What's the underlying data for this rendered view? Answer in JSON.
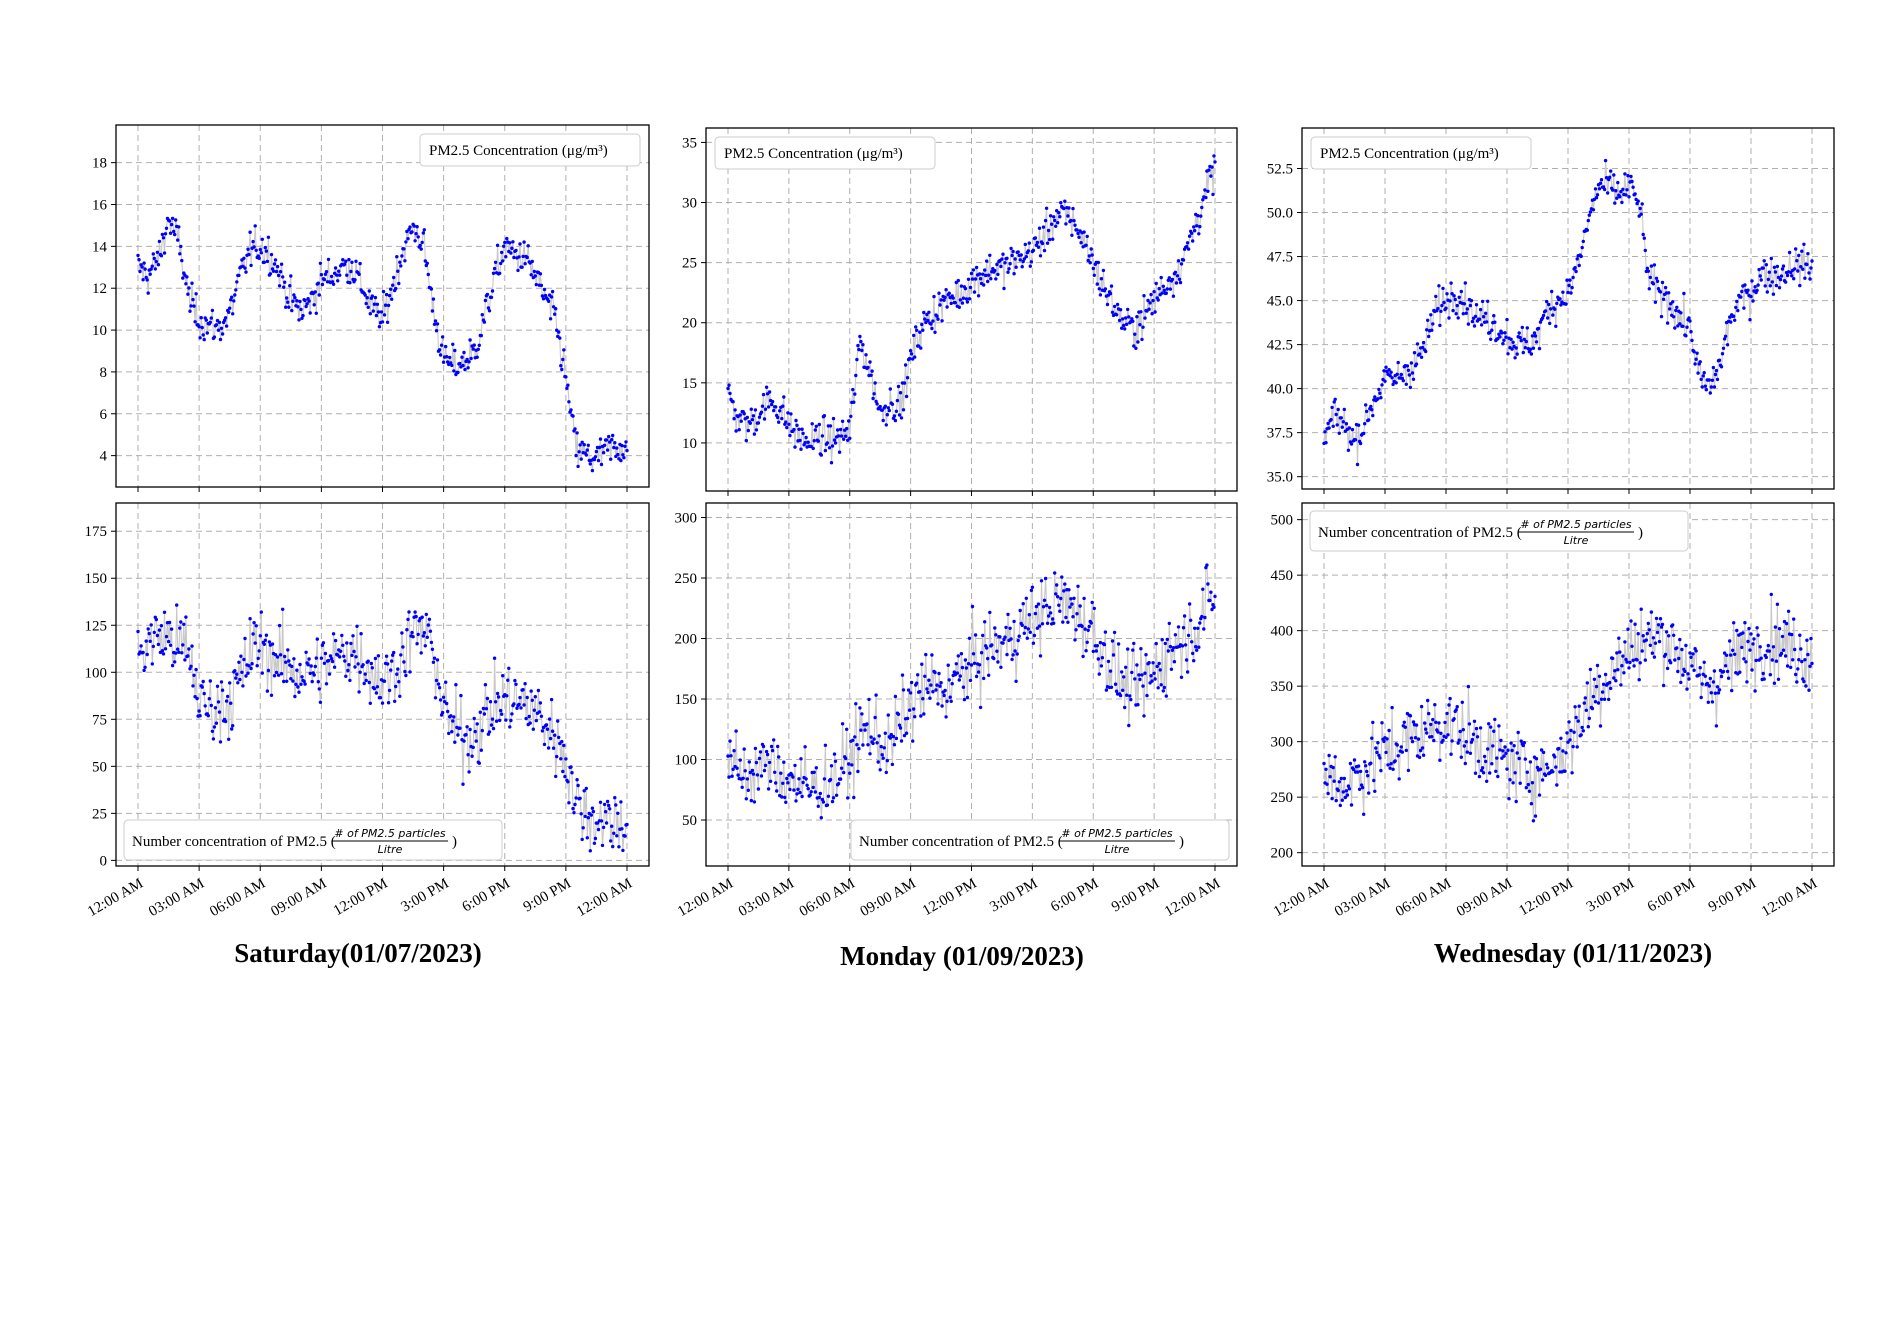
{
  "colors": {
    "marker": "#0000ff",
    "line": "#c8c8c8",
    "grid": "#b0b0b0",
    "axis": "#000000"
  },
  "captions": [
    "Saturday(01/07/2023)",
    "Monday (01/09/2023)",
    "Wednesday (01/11/2023)"
  ],
  "legend_mass": "PM2.5 Concentration (μg/m³)",
  "legend_number": {
    "prefix": "Number concentration of PM2.5 (",
    "numerator": "# of PM2.5 particles",
    "denominator": "Litre",
    "suffix": ")"
  },
  "x_ticks": [
    "12:00 AM",
    "03:00 AM",
    "06:00 AM",
    "09:00 AM",
    "12:00 PM",
    "3:00 PM",
    "6:00 PM",
    "9:00 PM",
    "12:00 AM"
  ],
  "chart_data": [
    {
      "type": "line",
      "day": "Saturday(01/07/2023)",
      "metric": "PM2.5 Concentration (μg/m³)",
      "legend_position": "top-right",
      "grid": true,
      "markers": true,
      "x_range_hours": [
        0,
        24
      ],
      "ylim": [
        2.5,
        19.8
      ],
      "yticks": [
        4,
        6,
        8,
        10,
        12,
        14,
        16,
        18
      ],
      "series": [
        {
          "name": "PM2.5 Concentration (μg/m³)",
          "x_hours": [
            0,
            0.5,
            1,
            1.5,
            2,
            2.5,
            3,
            3.5,
            4,
            4.5,
            5,
            5.5,
            6,
            6.5,
            7,
            7.5,
            8,
            8.5,
            9,
            9.5,
            10,
            10.5,
            11,
            11.5,
            12,
            12.5,
            13,
            13.5,
            14,
            14.5,
            15,
            15.5,
            16,
            16.5,
            17,
            17.5,
            18,
            18.5,
            19,
            19.5,
            20,
            20.5,
            21,
            21.5,
            22,
            22.5,
            23,
            23.5,
            24
          ],
          "values": [
            13.0,
            12.6,
            13.4,
            15.3,
            14.2,
            11.5,
            10.5,
            10.2,
            10.1,
            10.8,
            12.5,
            13.8,
            14.0,
            13.6,
            12.6,
            11.4,
            10.9,
            11.4,
            12.4,
            12.6,
            13.0,
            13.1,
            12.1,
            11.0,
            10.5,
            12.1,
            13.8,
            14.9,
            14.2,
            11.0,
            8.6,
            8.3,
            8.5,
            8.9,
            10.6,
            12.5,
            14.0,
            13.6,
            13.5,
            12.6,
            11.5,
            10.5,
            7.6,
            4.3,
            4.0,
            3.8,
            4.3,
            4.4,
            4.5
          ]
        }
      ]
    },
    {
      "type": "line",
      "day": "Monday (01/09/2023)",
      "metric": "PM2.5 Concentration (μg/m³)",
      "legend_position": "top-left",
      "grid": true,
      "markers": true,
      "x_range_hours": [
        0,
        24
      ],
      "ylim": [
        6.0,
        36.2
      ],
      "yticks": [
        10,
        15,
        20,
        25,
        30,
        35
      ],
      "series": [
        {
          "name": "PM2.5 Concentration (μg/m³)",
          "x_hours": [
            0,
            0.5,
            1,
            1.5,
            2,
            2.5,
            3,
            3.5,
            4,
            4.5,
            5,
            5.5,
            6,
            6.5,
            7,
            7.5,
            8,
            8.5,
            9,
            9.5,
            10,
            10.5,
            11,
            11.5,
            12,
            12.5,
            13,
            13.5,
            14,
            14.5,
            15,
            15.5,
            16,
            16.5,
            17,
            17.5,
            18,
            18.5,
            19,
            19.5,
            20,
            20.5,
            21,
            21.5,
            22,
            22.5,
            23,
            23.5,
            24
          ],
          "values": [
            14.0,
            12.0,
            11.5,
            12.5,
            13.5,
            13.0,
            11.5,
            10.5,
            10.0,
            10.5,
            10.2,
            10.5,
            11.0,
            18.5,
            16.0,
            12.5,
            13.5,
            13.0,
            17.0,
            19.5,
            20.5,
            21.5,
            22.0,
            22.5,
            23.5,
            24.0,
            24.5,
            24.5,
            25.0,
            25.5,
            26.0,
            27.0,
            28.5,
            29.0,
            28.5,
            27.0,
            25.0,
            23.0,
            21.5,
            20.0,
            19.5,
            20.5,
            22.0,
            23.0,
            24.0,
            25.5,
            28.0,
            30.5,
            33.0
          ]
        }
      ]
    },
    {
      "type": "line",
      "day": "Wednesday (01/11/2023)",
      "metric": "PM2.5 Concentration (μg/m³)",
      "legend_position": "top-left",
      "grid": true,
      "markers": true,
      "x_range_hours": [
        0,
        24
      ],
      "ylim": [
        34.3,
        54.8
      ],
      "yticks": [
        35.0,
        37.5,
        40.0,
        42.5,
        45.0,
        47.5,
        50.0,
        52.5
      ],
      "series": [
        {
          "name": "PM2.5 Concentration (μg/m³)",
          "x_hours": [
            0,
            0.5,
            1,
            1.5,
            2,
            2.5,
            3,
            3.5,
            4,
            4.5,
            5,
            5.5,
            6,
            6.5,
            7,
            7.5,
            8,
            8.5,
            9,
            9.5,
            10,
            10.5,
            11,
            11.5,
            12,
            12.5,
            13,
            13.5,
            14,
            14.5,
            15,
            15.5,
            16,
            16.5,
            17,
            17.5,
            18,
            18.5,
            19,
            19.5,
            20,
            20.5,
            21,
            21.5,
            22,
            22.5,
            23,
            23.5,
            24
          ],
          "values": [
            37.0,
            38.5,
            38.0,
            37.0,
            38.0,
            39.5,
            40.5,
            40.5,
            41.0,
            41.5,
            42.5,
            44.5,
            45.0,
            45.5,
            45.0,
            44.0,
            44.0,
            43.5,
            43.0,
            42.5,
            42.5,
            43.0,
            44.5,
            45.0,
            45.5,
            47.0,
            49.5,
            51.5,
            51.5,
            51.0,
            51.5,
            50.5,
            46.0,
            45.5,
            45.0,
            44.0,
            43.5,
            40.5,
            40.0,
            41.5,
            44.0,
            45.0,
            45.5,
            46.5,
            46.5,
            46.5,
            47.0,
            47.0,
            47.0
          ]
        }
      ]
    },
    {
      "type": "line",
      "day": "Saturday(01/07/2023)",
      "metric": "Number concentration of PM2.5 (# of PM2.5 particles / Litre)",
      "legend_position": "bottom-left",
      "grid": true,
      "markers": true,
      "x_range_hours": [
        0,
        24
      ],
      "ylim": [
        -3,
        190
      ],
      "yticks": [
        0,
        25,
        50,
        75,
        100,
        125,
        150,
        175
      ],
      "series": [
        {
          "name": "Number concentration of PM2.5 (# of PM2.5 particles / Litre)",
          "x_hours": [
            0,
            0.5,
            1,
            1.5,
            2,
            2.5,
            3,
            3.5,
            4,
            4.5,
            5,
            5.5,
            6,
            6.5,
            7,
            7.5,
            8,
            8.5,
            9,
            9.5,
            10,
            10.5,
            11,
            11.5,
            12,
            12.5,
            13,
            13.5,
            14,
            14.5,
            15,
            15.5,
            16,
            16.5,
            17,
            17.5,
            18,
            18.5,
            19,
            19.5,
            20,
            20.5,
            21,
            21.5,
            22,
            22.5,
            23,
            23.5,
            24
          ],
          "values": [
            110,
            115,
            120,
            118,
            115,
            110,
            85,
            80,
            82,
            86,
            95,
            110,
            115,
            110,
            105,
            102,
            100,
            100,
            102,
            105,
            110,
            112,
            108,
            100,
            95,
            100,
            110,
            120,
            122,
            112,
            80,
            70,
            65,
            68,
            75,
            82,
            85,
            85,
            82,
            80,
            72,
            65,
            55,
            30,
            25,
            22,
            22,
            20,
            22
          ]
        }
      ]
    },
    {
      "type": "line",
      "day": "Monday (01/09/2023)",
      "metric": "Number concentration of PM2.5 (# of PM2.5 particles / Litre)",
      "legend_position": "bottom-right",
      "grid": true,
      "markers": true,
      "x_range_hours": [
        0,
        24
      ],
      "ylim": [
        12,
        312
      ],
      "yticks": [
        50,
        100,
        150,
        200,
        250,
        300
      ],
      "series": [
        {
          "name": "Number concentration of PM2.5 (# of PM2.5 particles / Litre)",
          "x_hours": [
            0,
            0.5,
            1,
            1.5,
            2,
            2.5,
            3,
            3.5,
            4,
            4.5,
            5,
            5.5,
            6,
            6.5,
            7,
            7.5,
            8,
            8.5,
            9,
            9.5,
            10,
            10.5,
            11,
            11.5,
            12,
            12.5,
            13,
            13.5,
            14,
            14.5,
            15,
            15.5,
            16,
            16.5,
            17,
            17.5,
            18,
            18.5,
            19,
            19.5,
            20,
            20.5,
            21,
            21.5,
            22,
            22.5,
            23,
            23.5,
            24
          ],
          "values": [
            95,
            90,
            88,
            92,
            95,
            90,
            85,
            80,
            75,
            78,
            82,
            88,
            100,
            120,
            125,
            115,
            110,
            130,
            145,
            155,
            160,
            158,
            162,
            170,
            178,
            185,
            192,
            195,
            200,
            210,
            215,
            222,
            228,
            230,
            225,
            215,
            205,
            190,
            175,
            160,
            158,
            162,
            172,
            185,
            195,
            200,
            210,
            225,
            235
          ]
        }
      ]
    },
    {
      "type": "line",
      "day": "Wednesday (01/11/2023)",
      "metric": "Number concentration of PM2.5 (# of PM2.5 particles / Litre)",
      "legend_position": "top-left",
      "grid": true,
      "markers": true,
      "x_range_hours": [
        0,
        24
      ],
      "ylim": [
        188,
        515
      ],
      "yticks": [
        200,
        250,
        300,
        350,
        400,
        450,
        500
      ],
      "series": [
        {
          "name": "Number concentration of PM2.5 (# of PM2.5 particles / Litre)",
          "x_hours": [
            0,
            0.5,
            1,
            1.5,
            2,
            2.5,
            3,
            3.5,
            4,
            4.5,
            5,
            5.5,
            6,
            6.5,
            7,
            7.5,
            8,
            8.5,
            9,
            9.5,
            10,
            10.5,
            11,
            11.5,
            12,
            12.5,
            13,
            13.5,
            14,
            14.5,
            15,
            15.5,
            16,
            16.5,
            17,
            17.5,
            18,
            18.5,
            19,
            19.5,
            20,
            20.5,
            21,
            21.5,
            22,
            22.5,
            23,
            23.5,
            24
          ],
          "values": [
            270,
            265,
            260,
            270,
            275,
            285,
            290,
            295,
            300,
            305,
            310,
            315,
            318,
            312,
            305,
            298,
            292,
            288,
            282,
            278,
            275,
            272,
            275,
            285,
            298,
            315,
            335,
            350,
            360,
            370,
            380,
            390,
            392,
            395,
            390,
            380,
            365,
            355,
            350,
            360,
            370,
            380,
            385,
            390,
            392,
            390,
            385,
            380,
            378
          ]
        }
      ]
    }
  ]
}
